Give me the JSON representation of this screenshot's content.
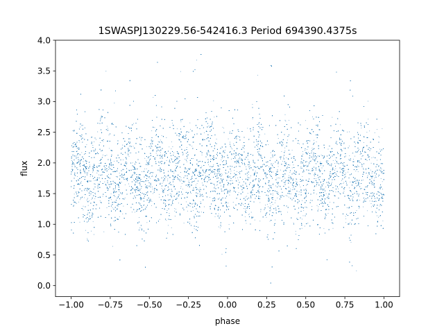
{
  "chart_data": {
    "type": "scatter",
    "title": "1SWASPJ130229.56-542416.3 Period 694390.4375s",
    "xlabel": "phase",
    "ylabel": "flux",
    "xlim": [
      -1.1,
      1.1
    ],
    "ylim": [
      -0.18,
      4.0
    ],
    "x_ticks": [
      -1.0,
      -0.75,
      -0.5,
      -0.25,
      0.0,
      0.25,
      0.5,
      0.75,
      1.0
    ],
    "x_tick_labels": [
      "−1.00",
      "−0.75",
      "−0.50",
      "−0.25",
      "0.00",
      "0.25",
      "0.50",
      "0.75",
      "1.00"
    ],
    "y_ticks": [
      0.0,
      0.5,
      1.0,
      1.5,
      2.0,
      2.5,
      3.0,
      3.5,
      4.0
    ],
    "y_tick_labels": [
      "0.0",
      "0.5",
      "1.0",
      "1.5",
      "2.0",
      "2.5",
      "3.0",
      "3.5",
      "4.0"
    ],
    "grid": false,
    "marker_color": "#1f77b4",
    "point_summary": {
      "phase_range": [
        -1.0,
        1.0
      ],
      "flux_median": 1.8,
      "flux_core_range": [
        1.0,
        2.6
      ],
      "flux_full_range": [
        0.0,
        3.8
      ],
      "repeat_interval_in_phase": 1.0,
      "bright_spike_phases": [
        -0.82,
        -0.7,
        -0.63,
        -0.45,
        -0.3,
        -0.2,
        0.18,
        0.3,
        0.37,
        0.55,
        0.7,
        0.8
      ],
      "dip_phases": [
        -0.82,
        -0.72,
        -0.45,
        -0.2,
        -0.03,
        0.18,
        0.28,
        0.55,
        0.78,
        0.8
      ]
    }
  }
}
